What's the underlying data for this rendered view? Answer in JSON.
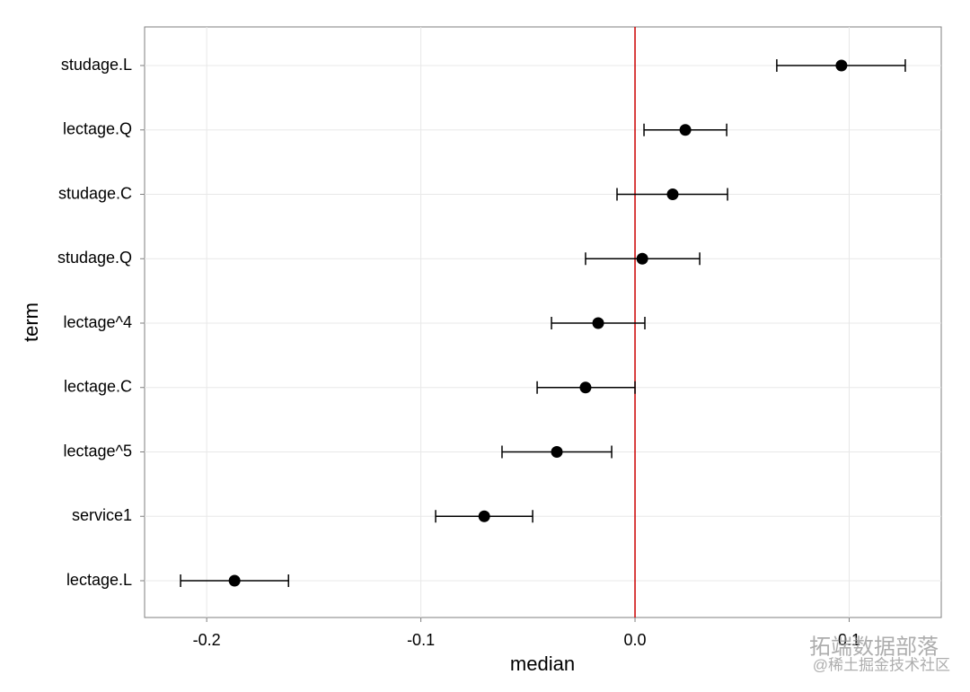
{
  "chart_data": {
    "type": "dot-errorbar",
    "x_label": "median",
    "y_label": "term",
    "categories": [
      "studage.L",
      "lectage.Q",
      "studage.C",
      "studage.Q",
      "lectage^4",
      "lectage.C",
      "lectage^5",
      "service1",
      "lectage.L"
    ],
    "values": [
      0.0964,
      0.0235,
      0.0176,
      0.0034,
      -0.0172,
      -0.0231,
      -0.0365,
      -0.0704,
      -0.187
    ],
    "lower": [
      0.0662,
      0.0042,
      -0.0084,
      -0.0231,
      -0.039,
      -0.0457,
      -0.0621,
      -0.0931,
      -0.2122
    ],
    "upper": [
      0.1262,
      0.0428,
      0.0432,
      0.0302,
      0.0046,
      0,
      -0.0109,
      -0.0478,
      -0.1618
    ],
    "color": "#000000",
    "xlim": [
      -0.229,
      0.143
    ],
    "xticks": [
      -0.2,
      -0.1,
      {
        "value": 0,
        "label": "0.0"
      },
      0.1
    ],
    "vline": 0,
    "vline_color": "#cc0000",
    "grid": true,
    "watermark": [
      "拓端数据部落",
      "@稀土掘金技术社区"
    ]
  }
}
